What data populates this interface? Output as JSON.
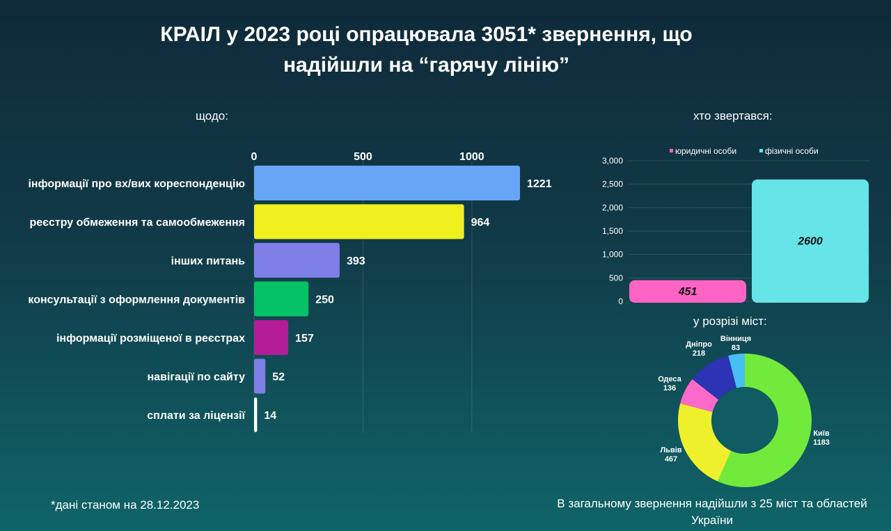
{
  "title": {
    "line1": "КРАІЛ у 2023 році опрацювала 3051* звернення, що",
    "line2": "надійшли на “гарячу лінію”"
  },
  "labels": {
    "about": "щодо:",
    "who": "хто звертався:",
    "cities": "у розрізі міст:"
  },
  "footnote": "*дані станом на 28.12.2023",
  "total_note": "В загальному звернення надійшли з 25 міст та областей України",
  "chart_data": [
    {
      "type": "bar",
      "orientation": "horizontal",
      "categories": [
        "інформації про вх/вих кореспонденцію",
        "реєстру обмеження та самообмеження",
        "інших питань",
        "консультації з оформлення документів",
        "інформації розміщеної в реєстрах",
        "навігації по сайту",
        "сплати за ліцензії"
      ],
      "values": [
        1221,
        964,
        393,
        250,
        157,
        52,
        14
      ],
      "colors": [
        "#66a6f6",
        "#f0ef1e",
        "#7f7fe8",
        "#06c266",
        "#b41c98",
        "#7f7fe8",
        "#ffffff"
      ],
      "xticks": [
        "0",
        "500",
        "1000"
      ],
      "xlim": [
        0,
        1250
      ],
      "grid": true
    },
    {
      "type": "bar",
      "categories": [
        "юридичні особи",
        "фізичні особи"
      ],
      "values": [
        451,
        2600
      ],
      "value_labels": [
        "451",
        "2600"
      ],
      "colors": [
        "#ff64c4",
        "#66e4e8"
      ],
      "ylim": [
        0,
        3000
      ],
      "yticks": [
        "0",
        "500",
        "1,000",
        "1,500",
        "2,000",
        "2,500",
        "3,000"
      ],
      "legend": "top"
    },
    {
      "type": "pie",
      "donut": true,
      "slices": [
        {
          "label": "Київ",
          "value": 1183,
          "value_text": "1183",
          "color": "#72ea3c"
        },
        {
          "label": "Львів",
          "value": 467,
          "value_text": "467",
          "color": "#eef02c"
        },
        {
          "label": "Одеса",
          "value": 136,
          "value_text": "136",
          "color": "#fb6ac8"
        },
        {
          "label": "Дніпро",
          "value": 218,
          "value_text": "218",
          "color": "#2c33b4"
        },
        {
          "label": "Вінниця",
          "value": 83,
          "value_text": "83",
          "color": "#46c0f4"
        }
      ]
    }
  ]
}
